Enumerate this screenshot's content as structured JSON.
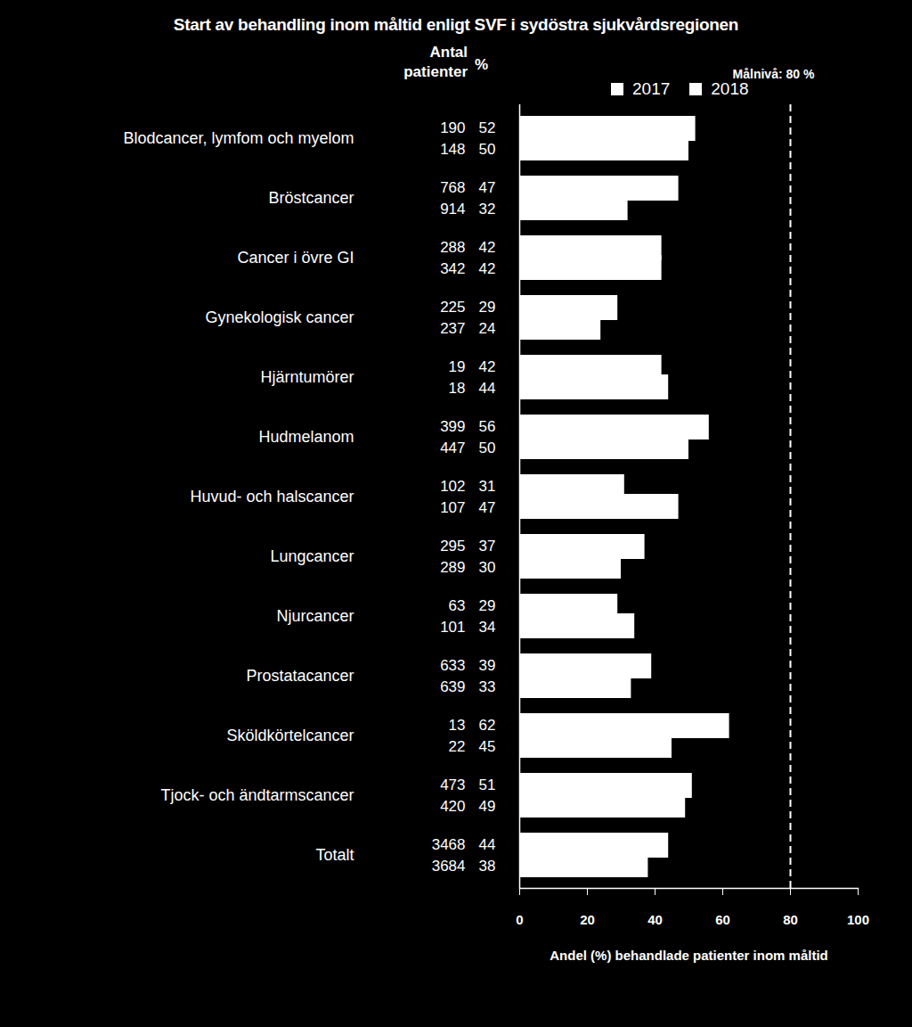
{
  "chart_data": {
    "type": "bar",
    "orientation": "horizontal",
    "title": "Start av behandling inom måltid enligt SVF i sydöstra sjukvårdsregionen",
    "column_headers": [
      "Antal patienter",
      "%"
    ],
    "categories": [
      "Blodcancer, lymfom och myelom",
      "Bröstcancer",
      "Cancer i övre GI",
      "Gynekologisk cancer",
      "Hjärntumörer",
      "Hudmelanom",
      "Huvud- och halscancer",
      "Lungcancer",
      "Njurcancer",
      "Prostatacancer",
      "Sköldkörtelcancer",
      "Tjock- och ändtarmscancer",
      "Totalt"
    ],
    "series": [
      {
        "name": "2017",
        "color": "#ffffff",
        "values": [
          52,
          47,
          42,
          29,
          42,
          56,
          31,
          37,
          29,
          39,
          62,
          51,
          44
        ],
        "patients": [
          190,
          768,
          288,
          225,
          19,
          399,
          102,
          295,
          63,
          633,
          13,
          473,
          3468
        ]
      },
      {
        "name": "2018",
        "color": "#ffffff",
        "values": [
          50,
          32,
          42,
          24,
          44,
          50,
          47,
          30,
          34,
          33,
          45,
          49,
          38
        ],
        "patients": [
          148,
          914,
          342,
          237,
          18,
          447,
          107,
          289,
          101,
          639,
          22,
          420,
          3684
        ]
      }
    ],
    "target": 80,
    "target_label": "Målnivå: 80 %",
    "xlabel": "Andel (%) behandlade patienter inom måltid",
    "xlim": [
      0,
      100
    ],
    "xticks": [
      0,
      20,
      40,
      60,
      80,
      100
    ],
    "legend": "top",
    "data_labels": true,
    "grid": false
  }
}
